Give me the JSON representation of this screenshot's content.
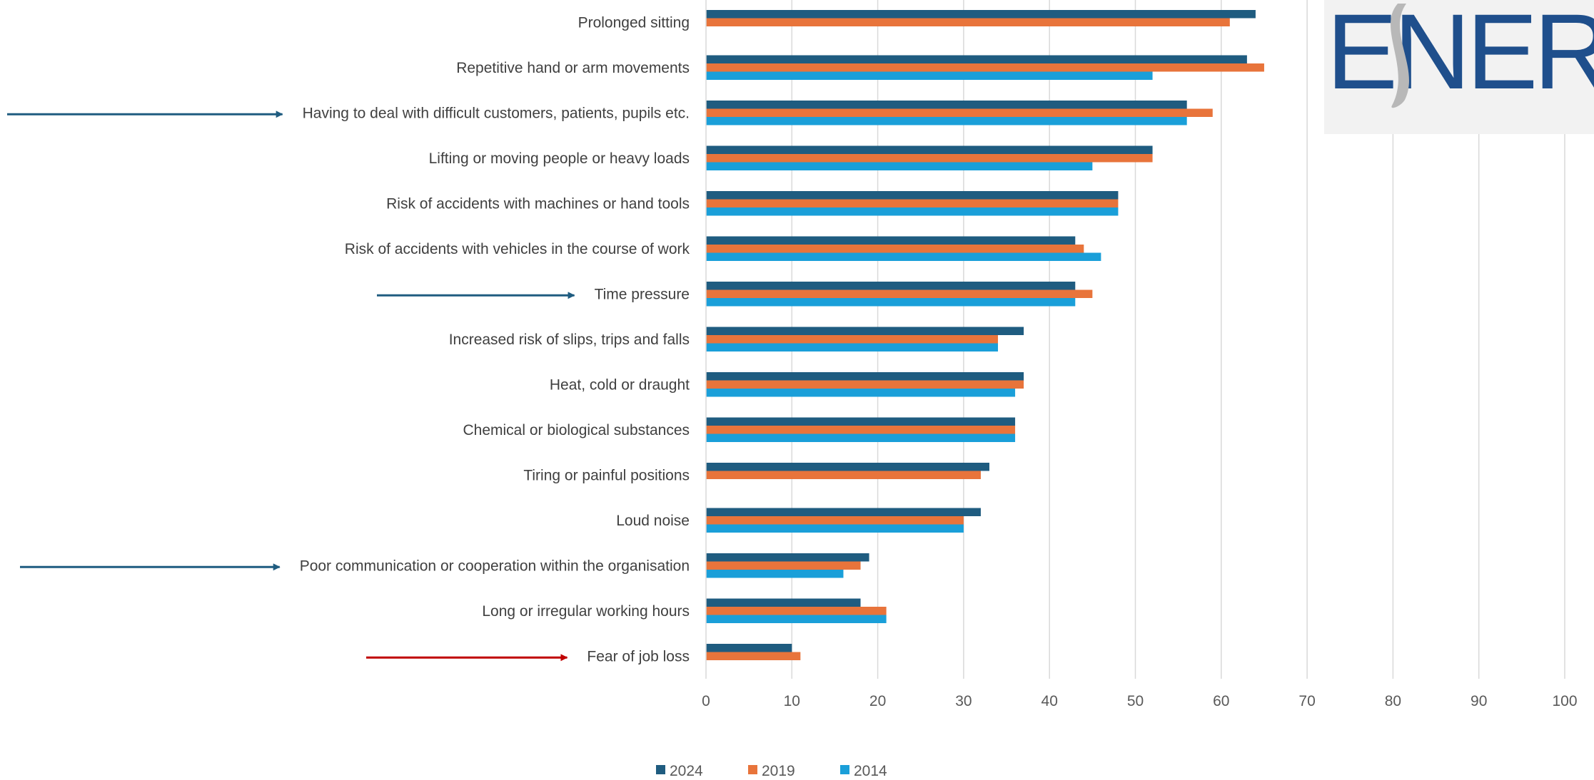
{
  "chart_data": {
    "type": "bar",
    "orientation": "horizontal",
    "title": "",
    "xlabel": "",
    "ylabel": "",
    "xlim": [
      0,
      100
    ],
    "xticks": [
      0,
      10,
      20,
      30,
      40,
      50,
      60,
      70,
      80,
      90,
      100
    ],
    "grid": "vertical",
    "legend_position": "bottom",
    "categories": [
      "Prolonged sitting",
      "Repetitive hand or arm movements",
      "Having to deal with difficult customers, patients, pupils etc.",
      "Lifting or moving people or heavy loads",
      "Risk of accidents with machines or hand tools",
      "Risk of accidents with vehicles in the course of work",
      "Time pressure",
      "Increased risk of slips, trips and falls",
      "Heat, cold or draught",
      "Chemical or biological substances",
      "Tiring or painful positions",
      "Loud noise",
      "Poor communication or cooperation within the organisation",
      "Long or irregular working hours",
      "Fear of job loss"
    ],
    "series": [
      {
        "name": "2024",
        "color": "#1f5c80",
        "values": [
          64,
          63,
          56,
          52,
          48,
          43,
          43,
          37,
          37,
          36,
          33,
          32,
          19,
          18,
          10
        ]
      },
      {
        "name": "2019",
        "color": "#e8743b",
        "values": [
          61,
          65,
          59,
          52,
          48,
          44,
          45,
          34,
          37,
          36,
          32,
          30,
          18,
          21,
          11
        ]
      },
      {
        "name": "2014",
        "color": "#1a9fd9",
        "values": [
          null,
          52,
          56,
          45,
          48,
          46,
          43,
          34,
          36,
          36,
          null,
          30,
          16,
          21,
          null
        ]
      }
    ],
    "highlight_arrows": [
      {
        "category": "Having to deal with difficult customers, patients, pupils etc.",
        "color": "#1f5c80"
      },
      {
        "category": "Time pressure",
        "color": "#1f5c80"
      },
      {
        "category": "Poor communication or cooperation within the organisation",
        "color": "#1f5c80"
      },
      {
        "category": "Fear of job loss",
        "color": "#c00000"
      }
    ]
  },
  "logo": {
    "text": "ESENER"
  }
}
